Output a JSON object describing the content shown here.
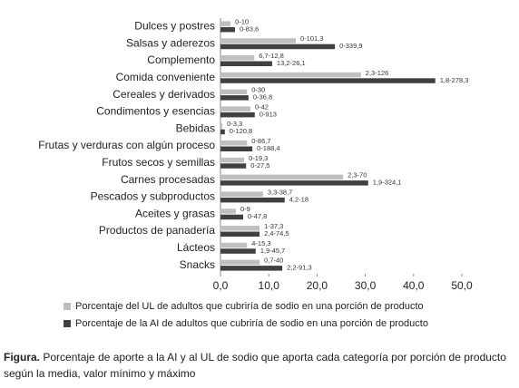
{
  "chart_data": {
    "type": "hbar",
    "categories": [
      "Dulces y postres",
      "Salsas y aderezos",
      "Complemento",
      "Comida conveniente",
      "Cereales y derivados",
      "Condimentos y esencias",
      "Bebidas",
      "Frutas y verduras con algún proceso",
      "Frutos secos y semillas",
      "Carnes procesadas",
      "Pescados y subproductos",
      "Aceites y grasas",
      "Productos de panadería",
      "Lácteos",
      "Snacks"
    ],
    "series": [
      {
        "name": "Porcentaje del UL de adultos que cubriría de sodio en una porción de producto",
        "color": "#bfbfbf",
        "values": [
          2.1,
          15.6,
          7.0,
          29.1,
          5.5,
          6.2,
          0.4,
          5.5,
          4.9,
          25.4,
          8.8,
          3.2,
          8.1,
          5.5,
          8.1
        ],
        "range_labels": [
          "0-10",
          "0-101,3",
          "6,7-12,8",
          "2,3-126",
          "0-30",
          "0-42",
          "0-3,3",
          "0-86,7",
          "0-19,3",
          "2,3-70",
          "3,3-38,7",
          "0-9",
          "1-37,3",
          "4-15,3",
          "0,7-40"
        ]
      },
      {
        "name": "Porcentaje de la AI de adultos que cubriría de sodio en una porción de producto",
        "color": "#404040",
        "values": [
          3.0,
          23.7,
          10.7,
          44.5,
          5.8,
          7.1,
          0.9,
          6.6,
          5.3,
          30.6,
          13.3,
          4.7,
          8.1,
          7.3,
          12.8
        ],
        "range_labels": [
          "0-83,6",
          "0-339,9",
          "13,2-26,1",
          "1,8-278,3",
          "0-36,8",
          "0-913",
          "0-120,8",
          "0-188,4",
          "0-27,5",
          "1,9-324,1",
          "4,2-18",
          "0-47,8",
          "2,4-74,5",
          "1,9-45,7",
          "2,2-91,3"
        ]
      }
    ],
    "xlim": [
      0,
      50
    ],
    "xticks": [
      {
        "value": 0,
        "label": "0,0"
      },
      {
        "value": 10,
        "label": "10,0"
      },
      {
        "value": 20,
        "label": "20,0"
      },
      {
        "value": 30,
        "label": "30,0"
      },
      {
        "value": 40,
        "label": "40,0"
      },
      {
        "value": 50,
        "label": "50,0"
      }
    ],
    "caption_label": "Figura.",
    "caption": "Porcentaje de aporte a la AI y al UL de sodio que aporta cada categoría por porción de producto según la media, valor mínimo y máximo"
  }
}
